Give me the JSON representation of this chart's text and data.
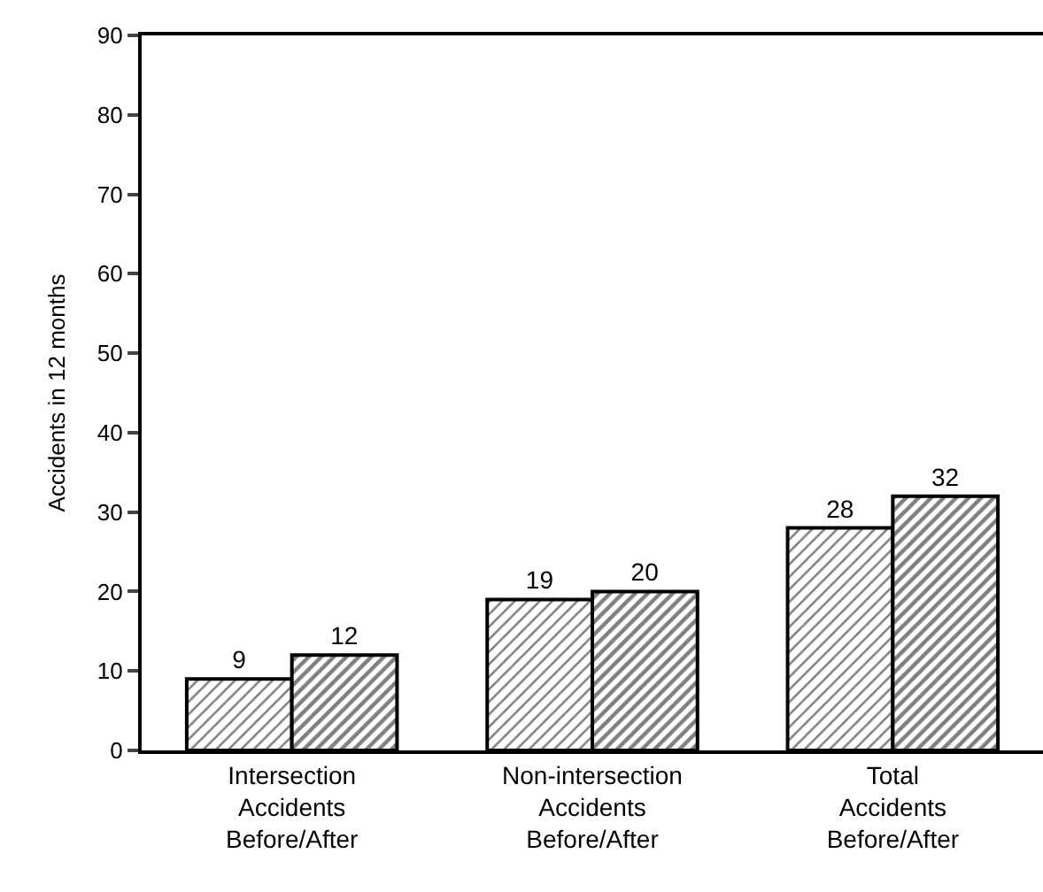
{
  "chart_data": {
    "type": "bar",
    "ylabel": "Accidents in 12 months",
    "categories": [
      "Intersection\nAccidents\nBefore/After",
      "Non-intersection\nAccidents\nBefore/After",
      "Total\nAccidents\nBefore/After"
    ],
    "series": [
      {
        "color": "#000000",
        "values": [
          9,
          19,
          28
        ]
      },
      {
        "color": "#000000",
        "values": [
          12,
          20,
          32
        ]
      }
    ],
    "ylim": [
      0,
      90
    ],
    "yticks": [
      0,
      10,
      20,
      30,
      40,
      50,
      60,
      70,
      80,
      90
    ],
    "data_labels": true
  }
}
